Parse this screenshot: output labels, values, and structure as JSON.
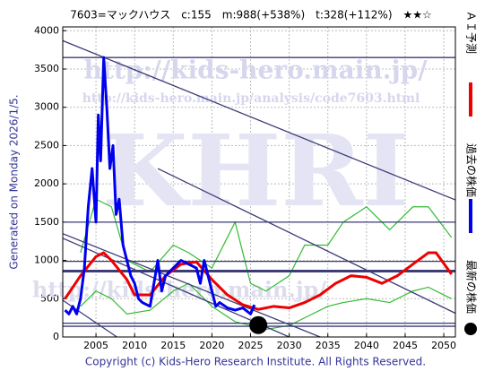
{
  "chart_data": {
    "type": "line",
    "title": "7603=マックハウス　c:155　m:988(+538%)　t:328(+112%)　★★☆",
    "note": "Generated on Monday 2026/1/5.",
    "footer": "Copyright (c) Kids-Hero Research Institute. All Rights Reserved.",
    "watermarks": [
      "http://kids-hero.main.jp/",
      "http://kids-hero.main.jp/analysis/code7603.html",
      "KHRI",
      "http://kids-hero.main.jp/"
    ],
    "xlim": [
      2000.7,
      2051.5
    ],
    "ylim": [
      0,
      4050
    ],
    "xticks": [
      2005,
      2010,
      2015,
      2020,
      2025,
      2030,
      2035,
      2040,
      2045,
      2050
    ],
    "yticks": [
      0,
      500,
      1000,
      1500,
      2000,
      2500,
      3000,
      3500,
      4000
    ],
    "grid": true,
    "hlines": [
      3650,
      1500,
      988,
      860,
      180,
      140
    ],
    "hline_color": "#3c3c78",
    "trendlines": [
      {
        "x": [
          2000.7,
          2051.5
        ],
        "values": [
          3870,
          1790
        ]
      },
      {
        "x": [
          2000.7,
          2034
        ],
        "values": [
          1350,
          0
        ]
      },
      {
        "x": [
          2000.7,
          2030
        ],
        "values": [
          1290,
          0
        ]
      },
      {
        "x": [
          2000.7,
          2007.7
        ],
        "values": [
          480,
          0
        ]
      },
      {
        "x": [
          2013,
          2051.5
        ],
        "values": [
          2200,
          310
        ]
      }
    ],
    "envelopes": [
      {
        "color": "#33bb33",
        "x": [
          2003,
          2005,
          2007,
          2009,
          2012,
          2015,
          2017,
          2020,
          2023,
          2025,
          2027,
          2030,
          2032,
          2035,
          2037,
          2040,
          2043,
          2046,
          2048,
          2051
        ],
        "values": [
          1100,
          1800,
          1700,
          1000,
          850,
          1200,
          1100,
          900,
          1500,
          700,
          600,
          800,
          1200,
          1200,
          1500,
          1700,
          1400,
          1700,
          1700,
          1300
        ]
      },
      {
        "color": "#33bb33",
        "x": [
          2003,
          2005,
          2007,
          2009,
          2012,
          2015,
          2017,
          2020,
          2023,
          2025,
          2027,
          2030,
          2032,
          2035,
          2037,
          2040,
          2043,
          2046,
          2048,
          2051
        ],
        "values": [
          400,
          600,
          500,
          300,
          350,
          600,
          700,
          400,
          200,
          150,
          100,
          150,
          250,
          400,
          450,
          500,
          450,
          600,
          650,
          500
        ]
      }
    ],
    "series": [
      {
        "name": "ＡＩ予測",
        "color": "#ee0000",
        "width": 3,
        "x": [
          2001,
          2003,
          2005,
          2006,
          2007,
          2009,
          2010,
          2012,
          2014,
          2016,
          2018,
          2020,
          2022,
          2024,
          2026,
          2028,
          2030,
          2032,
          2034,
          2036,
          2038,
          2040,
          2042,
          2044,
          2046,
          2048,
          2049,
          2051
        ],
        "values": [
          500,
          800,
          1050,
          1100,
          1000,
          750,
          550,
          550,
          800,
          950,
          980,
          750,
          550,
          420,
          360,
          400,
          380,
          450,
          550,
          700,
          800,
          780,
          700,
          800,
          950,
          1100,
          1100,
          820
        ]
      },
      {
        "name": "過去の株価",
        "color": "#0000ee",
        "width": 3,
        "x": [
          2001,
          2001.5,
          2002,
          2002.5,
          2003,
          2003.5,
          2004,
          2004.5,
          2005,
          2005.3,
          2005.6,
          2006,
          2006.4,
          2006.8,
          2007.2,
          2007.6,
          2008,
          2008.5,
          2009,
          2009.5,
          2010,
          2010.5,
          2011,
          2012,
          2013,
          2013.5,
          2014,
          2015,
          2016,
          2017,
          2018,
          2018.5,
          2019,
          2019.5,
          2020,
          2020.5,
          2021,
          2022,
          2023,
          2024,
          2025,
          2025.5
        ],
        "values": [
          350,
          300,
          400,
          300,
          500,
          900,
          1700,
          2200,
          1500,
          2900,
          2300,
          3650,
          3000,
          2200,
          2500,
          1600,
          1800,
          1200,
          1000,
          800,
          700,
          500,
          450,
          400,
          1000,
          600,
          800,
          900,
          1000,
          950,
          900,
          700,
          1000,
          800,
          600,
          400,
          450,
          380,
          350,
          380,
          300,
          420
        ]
      },
      {
        "name": "最新の株価",
        "color": "#000000",
        "marker": "circle",
        "x": [
          2026
        ],
        "values": [
          155
        ]
      }
    ]
  }
}
